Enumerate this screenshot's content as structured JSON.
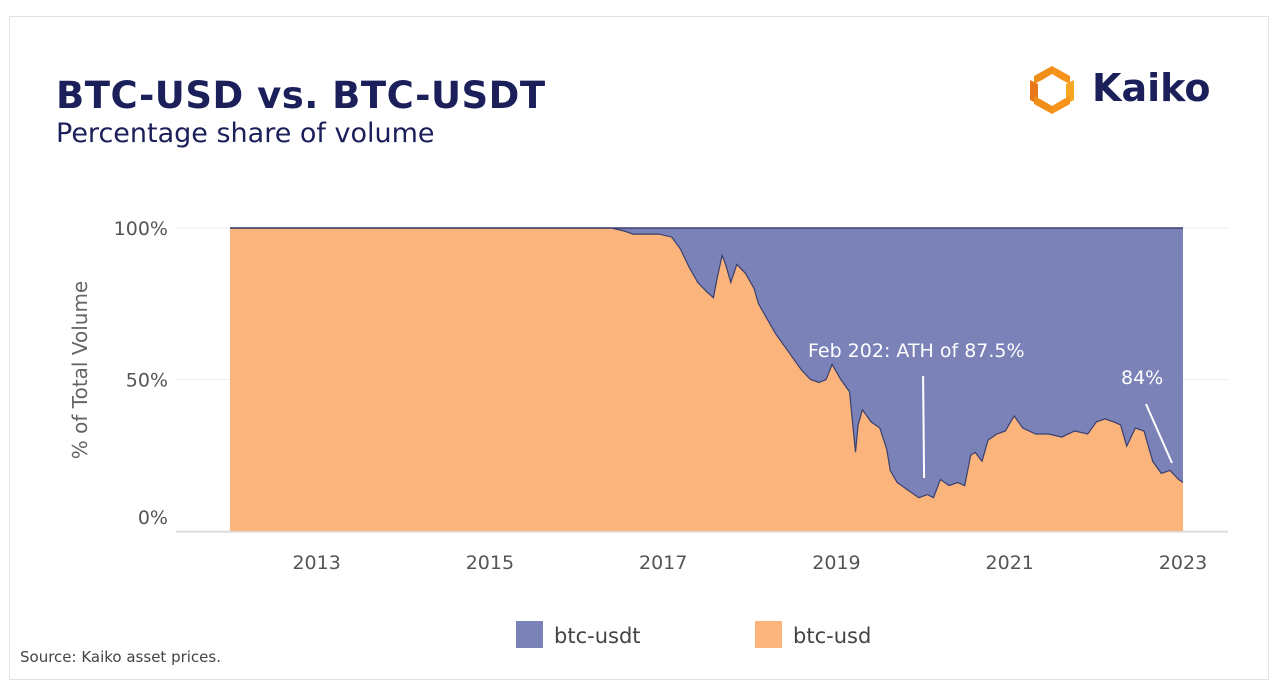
{
  "header": {
    "title": "BTC-USD vs. BTC-USDT",
    "subtitle": "Percentage share of volume",
    "brand": "Kaiko"
  },
  "footer": {
    "source": "Source: Kaiko asset prices."
  },
  "colors": {
    "btc_usdt": "#7b82b8",
    "btc_usd": "#fbb57c",
    "title": "#1b1f5a",
    "logo_orange": "#f7931a"
  },
  "chart_data": {
    "type": "area",
    "stacked": true,
    "percent": true,
    "xlabel": "",
    "ylabel": "% of Total Volume",
    "x_ticks": [
      "2013",
      "2015",
      "2017",
      "2019",
      "2021",
      "2023"
    ],
    "y_ticks": [
      "0%",
      "50%",
      "100%"
    ],
    "x_range": [
      2012.0,
      2023.3
    ],
    "y_range": [
      0,
      100
    ],
    "legend_position": "bottom",
    "series": [
      {
        "name": "btc-usdt",
        "note": "remainder of 100%"
      },
      {
        "name": "btc-usd",
        "x": [
          2012.0,
          2016.4,
          2016.55,
          2016.65,
          2016.8,
          2016.95,
          2017.1,
          2017.2,
          2017.3,
          2017.4,
          2017.5,
          2017.58,
          2017.62,
          2017.68,
          2017.72,
          2017.78,
          2017.85,
          2017.95,
          2018.05,
          2018.1,
          2018.2,
          2018.3,
          2018.4,
          2018.5,
          2018.6,
          2018.7,
          2018.8,
          2018.88,
          2018.95,
          2019.05,
          2019.15,
          2019.22,
          2019.25,
          2019.3,
          2019.4,
          2019.5,
          2019.58,
          2019.62,
          2019.7,
          2019.85,
          2019.95,
          2020.05,
          2020.12,
          2020.2,
          2020.3,
          2020.4,
          2020.48,
          2020.55,
          2020.6,
          2020.68,
          2020.75,
          2020.85,
          2020.95,
          2021.05,
          2021.15,
          2021.3,
          2021.45,
          2021.6,
          2021.75,
          2021.9,
          2022.0,
          2022.1,
          2022.2,
          2022.28,
          2022.35,
          2022.45,
          2022.55,
          2022.65,
          2022.75,
          2022.85,
          2022.95,
          2023.0
        ],
        "values": [
          100,
          100,
          99,
          98,
          98,
          98,
          97,
          93,
          87,
          82,
          79,
          77,
          83,
          91,
          88,
          82,
          88,
          85,
          80,
          75,
          70,
          65,
          61,
          57,
          53,
          50,
          49,
          50,
          55,
          50,
          46,
          26,
          35,
          40,
          36,
          34,
          27,
          20,
          16,
          13,
          11,
          12,
          11,
          17,
          15,
          16,
          15,
          25,
          26,
          23,
          30,
          32,
          33,
          38,
          34,
          32,
          32,
          31,
          33,
          32,
          36,
          37,
          36,
          35,
          28,
          34,
          33,
          23,
          19,
          20,
          17,
          16
        ]
      }
    ],
    "annotations": [
      {
        "text": "Feb 202: ATH of 87.5%",
        "x": 2020.0,
        "y": 12.5
      },
      {
        "text": "84%",
        "x": 2022.92,
        "y": 16
      }
    ]
  }
}
